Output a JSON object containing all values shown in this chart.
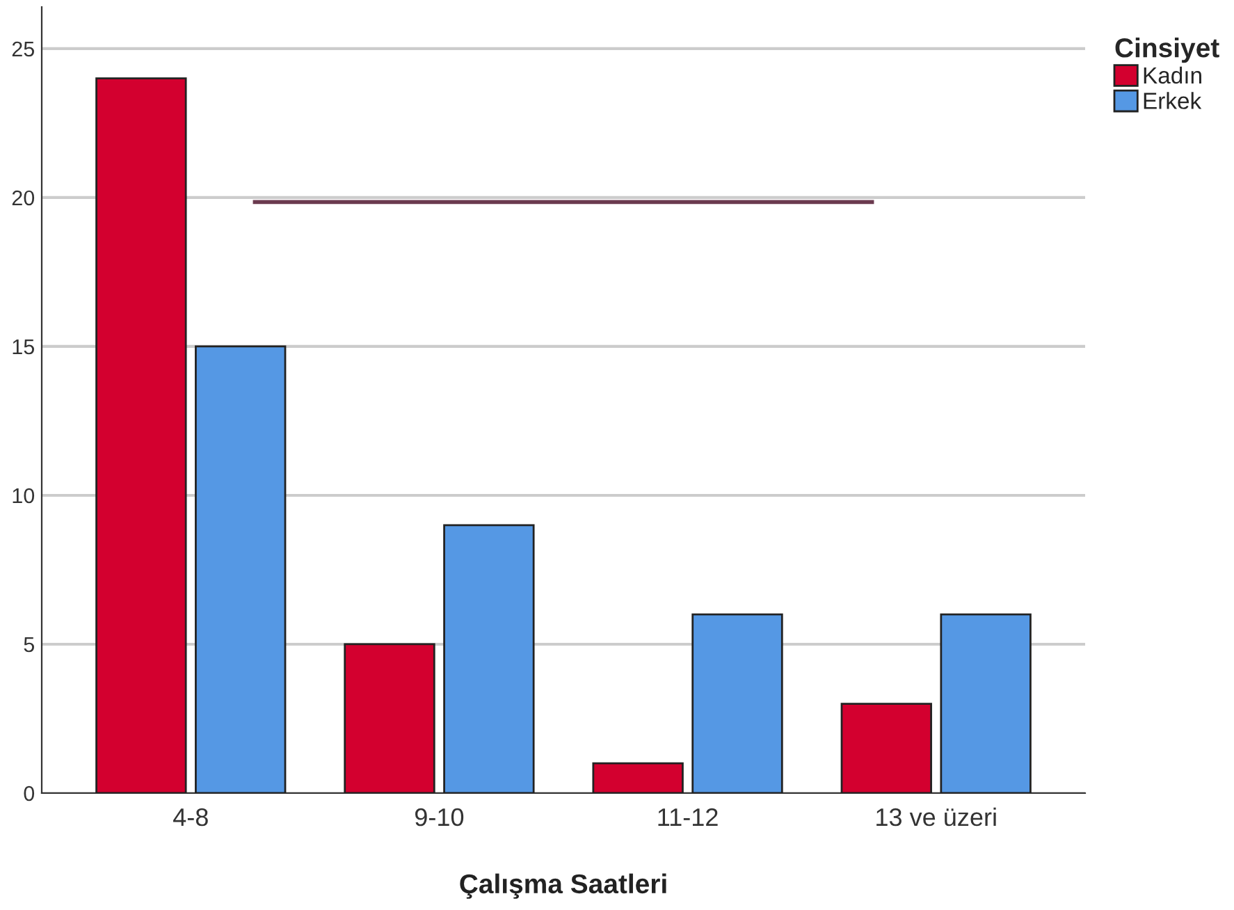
{
  "chart_data": {
    "type": "bar",
    "xlabel": "Çalışma Saatleri",
    "legend_title": "Cinsiyet",
    "categories": [
      "4-8",
      "9-10",
      "11-12",
      "13 ve üzeri"
    ],
    "series": [
      {
        "name": "Kadın",
        "color": "#d3002f",
        "values": [
          24,
          5,
          1,
          3
        ]
      },
      {
        "name": "Erkek",
        "color": "#5598e4",
        "values": [
          15,
          9,
          6,
          6
        ]
      }
    ],
    "ylim": [
      0,
      26.4
    ],
    "yticks": [
      0,
      5,
      10,
      15,
      20,
      25
    ],
    "grid": "y",
    "legend": "top right",
    "ref_lines": [
      {
        "axis": "y",
        "value": 19.85,
        "color": "#6b3a4f"
      }
    ]
  }
}
